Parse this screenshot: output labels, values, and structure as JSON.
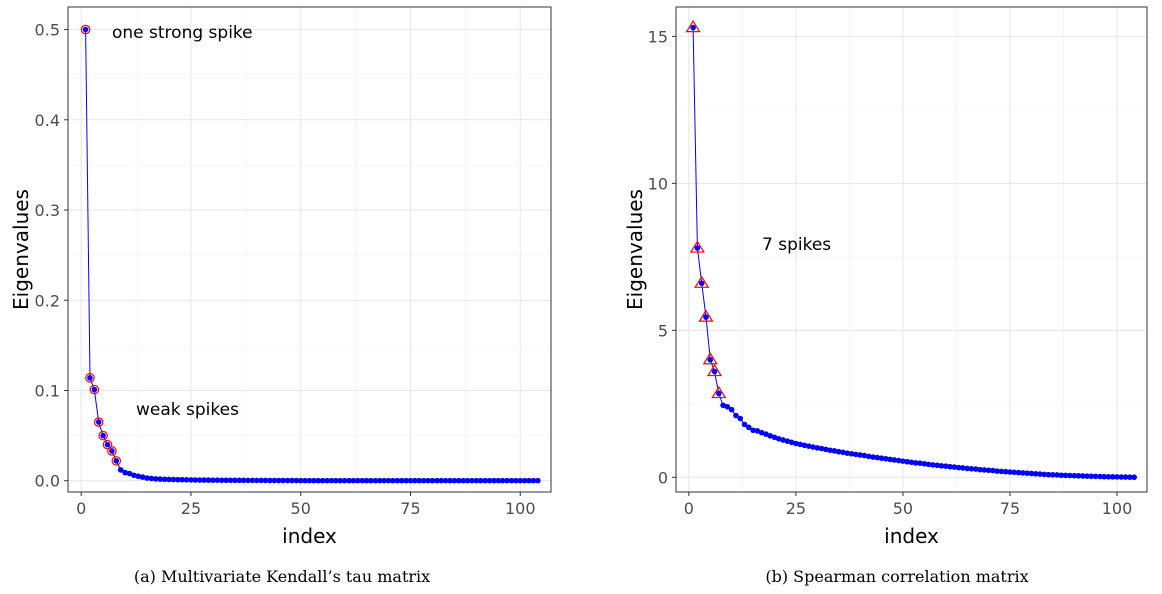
{
  "chart_data": [
    {
      "type": "scatter",
      "caption": "(a) Multivariate Kendall’s tau matrix",
      "xlabel": "index",
      "ylabel": "Eigenvalues",
      "xlim": [
        -3,
        107
      ],
      "ylim": [
        -0.0125,
        0.525
      ],
      "xticks": [
        0,
        25,
        50,
        75,
        100
      ],
      "xtick_labels": [
        "0",
        "25",
        "50",
        "75",
        "100"
      ],
      "yticks": [
        0,
        0.1,
        0.2,
        0.3,
        0.4,
        0.5
      ],
      "ytick_labels": [
        "0.0",
        "0.1",
        "0.2",
        "0.3",
        "0.4",
        "0.5"
      ],
      "grid": true,
      "annotations": [
        {
          "text": "one strong spike",
          "x": 7,
          "y": 0.5
        },
        {
          "text": "weak spikes",
          "x": 12,
          "y": 0.075
        }
      ],
      "series": [
        {
          "color": "#0000ff",
          "marker": "point",
          "x": [
            1,
            2,
            3,
            4,
            5,
            6,
            7,
            8,
            9,
            10,
            11,
            12,
            13,
            14,
            15,
            16,
            17,
            18,
            19,
            20,
            21,
            22,
            23,
            24,
            25,
            26,
            27,
            28,
            29,
            30,
            31,
            32,
            33,
            34,
            35,
            36,
            37,
            38,
            39,
            40,
            41,
            42,
            43,
            44,
            45,
            46,
            47,
            48,
            49,
            50,
            51,
            52,
            53,
            54,
            55,
            56,
            57,
            58,
            59,
            60,
            61,
            62,
            63,
            64,
            65,
            66,
            67,
            68,
            69,
            70,
            71,
            72,
            73,
            74,
            75,
            76,
            77,
            78,
            79,
            80,
            81,
            82,
            83,
            84,
            85,
            86,
            87,
            88,
            89,
            90,
            91,
            92,
            93,
            94,
            95,
            96,
            97,
            98,
            99,
            100,
            101,
            102,
            103,
            104
          ],
          "y": [
            0.5,
            0.114,
            0.101,
            0.065,
            0.05,
            0.04,
            0.033,
            0.022,
            0.012,
            0.009,
            0.008,
            0.006,
            0.005,
            0.004,
            0.003,
            0.0025,
            0.002,
            0.0018,
            0.0016,
            0.0014,
            0.0013,
            0.0012,
            0.0011,
            0.001,
            0.0009,
            0.0008,
            0.0008,
            0.0007,
            0.0007,
            0.0006,
            0.0006,
            0.0005,
            0.0005,
            0.0005,
            0.0004,
            0.0004,
            0.0004,
            0.0003,
            0.0003,
            0.0003,
            0.0003,
            0.0003,
            0.0002,
            0.0002,
            0.0002,
            0.0002,
            0.0002,
            0.0002,
            0.0002,
            0.0001,
            0.0001,
            0.0001,
            0.0001,
            0.0001,
            0.0001,
            0.0001,
            0.0001,
            0.0001,
            0.0001,
            0.0001,
            0.0001,
            0.0001,
            0.0001,
            0.0001,
            0.0001,
            0.0001,
            0.0001,
            0.0001,
            0.0001,
            0.0001,
            0.0001,
            0.0001,
            0.0001,
            0.0001,
            0.0001,
            0.0001,
            0.0001,
            0.0001,
            0.0001,
            0.0001,
            0.0001,
            0.0001,
            0.0001,
            0.0001,
            0.0001,
            0.0001,
            0.0001,
            0.0001,
            0.0001,
            0.0001,
            0.0001,
            0.0001,
            0.0001,
            0.0001,
            0.0001,
            0.0001,
            0.0001,
            0.0001,
            0.0001,
            0.0001,
            0.0001,
            0.0001,
            0.0001,
            0.0001
          ]
        },
        {
          "marker": "circle",
          "color": "#ff0000",
          "x": [
            1,
            2,
            3,
            4,
            5,
            6,
            7,
            8
          ],
          "y": [
            0.5,
            0.114,
            0.101,
            0.065,
            0.05,
            0.04,
            0.033,
            0.022
          ]
        }
      ]
    },
    {
      "type": "scatter",
      "caption": "(b) Spearman correlation matrix",
      "xlabel": "index",
      "ylabel": "Eigenvalues",
      "xlim": [
        -3,
        107
      ],
      "ylim": [
        -0.5,
        16
      ],
      "xticks": [
        0,
        25,
        50,
        75,
        100
      ],
      "xtick_labels": [
        "0",
        "25",
        "50",
        "75",
        "100"
      ],
      "yticks": [
        0,
        5,
        10,
        15
      ],
      "ytick_labels": [
        "0",
        "5",
        "10",
        "15"
      ],
      "grid": true,
      "annotations": [
        {
          "text": "7 spikes",
          "x": 16,
          "y": 7.8
        }
      ],
      "series": [
        {
          "color": "#0000ff",
          "marker": "point",
          "x": [
            1,
            2,
            3,
            4,
            5,
            6,
            7,
            8,
            9,
            10,
            11,
            12,
            13,
            14,
            15,
            16,
            17,
            18,
            19,
            20,
            21,
            22,
            23,
            24,
            25,
            26,
            27,
            28,
            29,
            30,
            31,
            32,
            33,
            34,
            35,
            36,
            37,
            38,
            39,
            40,
            41,
            42,
            43,
            44,
            45,
            46,
            47,
            48,
            49,
            50,
            51,
            52,
            53,
            54,
            55,
            56,
            57,
            58,
            59,
            60,
            61,
            62,
            63,
            64,
            65,
            66,
            67,
            68,
            69,
            70,
            71,
            72,
            73,
            74,
            75,
            76,
            77,
            78,
            79,
            80,
            81,
            82,
            83,
            84,
            85,
            86,
            87,
            88,
            89,
            90,
            91,
            92,
            93,
            94,
            95,
            96,
            97,
            98,
            99,
            100,
            101,
            102,
            103,
            104
          ],
          "y": [
            15.3,
            7.8,
            6.6,
            5.45,
            4.0,
            3.6,
            2.85,
            2.45,
            2.4,
            2.3,
            2.1,
            2.0,
            1.8,
            1.7,
            1.6,
            1.58,
            1.52,
            1.47,
            1.41,
            1.36,
            1.31,
            1.27,
            1.23,
            1.19,
            1.15,
            1.12,
            1.09,
            1.06,
            1.03,
            1.0,
            0.98,
            0.95,
            0.92,
            0.9,
            0.87,
            0.85,
            0.82,
            0.8,
            0.78,
            0.76,
            0.74,
            0.71,
            0.69,
            0.67,
            0.65,
            0.63,
            0.61,
            0.59,
            0.57,
            0.55,
            0.53,
            0.51,
            0.49,
            0.48,
            0.46,
            0.44,
            0.42,
            0.41,
            0.39,
            0.38,
            0.36,
            0.35,
            0.33,
            0.32,
            0.3,
            0.29,
            0.28,
            0.26,
            0.25,
            0.24,
            0.23,
            0.21,
            0.2,
            0.19,
            0.18,
            0.17,
            0.16,
            0.15,
            0.14,
            0.13,
            0.12,
            0.11,
            0.1,
            0.09,
            0.085,
            0.08,
            0.07,
            0.065,
            0.06,
            0.055,
            0.05,
            0.045,
            0.04,
            0.035,
            0.03,
            0.025,
            0.02,
            0.018,
            0.015,
            0.012,
            0.01,
            0.008,
            0.005,
            0.003
          ]
        },
        {
          "marker": "triangle",
          "color": "#ff0000",
          "x": [
            1,
            2,
            3,
            4,
            5,
            6,
            7
          ],
          "y": [
            15.3,
            7.8,
            6.6,
            5.45,
            4.0,
            3.6,
            2.85
          ]
        }
      ]
    }
  ]
}
